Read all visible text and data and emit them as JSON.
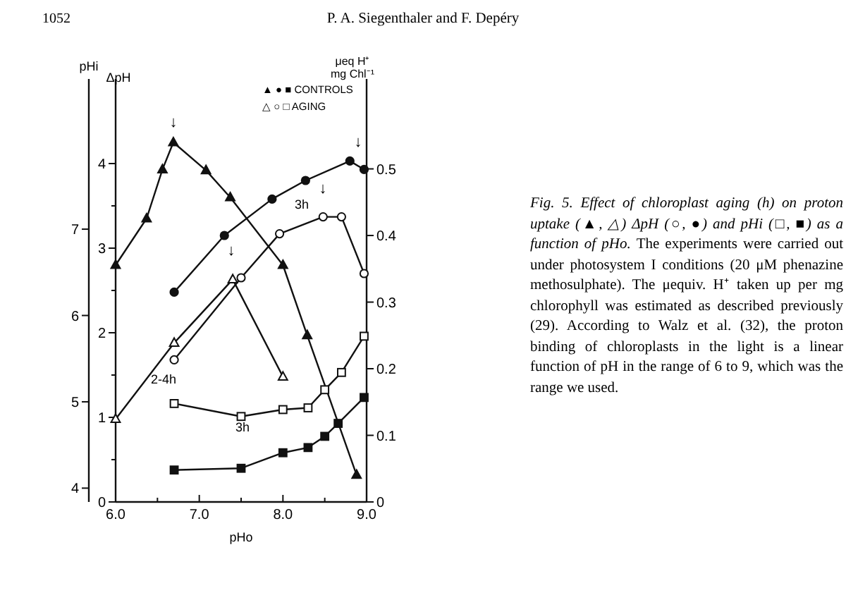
{
  "chart_data": {
    "type": "line",
    "title": "Fig. 5. Effect of chloroplast aging (h) on proton uptake (▲, △) ΔpH (○, ●) and pHi (□, ■) as a function of pHo.",
    "xlabel": "pHo",
    "ylabel": "ΔpH",
    "y3label": "pHi",
    "y2label": "μeq H⁺ mg Chl⁻¹",
    "xlim": [
      6,
      9
    ],
    "xticks": [
      {
        "value": 6,
        "label": "6.0"
      },
      {
        "value": 6.5,
        "label": null
      },
      {
        "value": 7,
        "label": "7.0"
      },
      {
        "value": 7.5,
        "label": null
      },
      {
        "value": 8,
        "label": "8.0"
      },
      {
        "value": 8.5,
        "label": null
      },
      {
        "value": 9,
        "label": "9.0"
      }
    ],
    "ylim": [
      0,
      5
    ],
    "yticks": [
      0,
      {
        "value": 0.5,
        "label": null
      },
      1,
      {
        "value": 1.5,
        "label": null
      },
      2,
      {
        "value": 2.5,
        "label": null
      },
      3,
      {
        "value": 3.5,
        "label": null
      },
      4
    ],
    "y3lim": [
      3.84,
      8.74
    ],
    "y3ticks": [
      4,
      5,
      6,
      7
    ],
    "y2lim": [
      0,
      0.635
    ],
    "y2ticks": [
      0,
      0.1,
      0.2,
      0.3,
      0.4,
      0.5
    ],
    "grid": false,
    "line_style": "solid",
    "series": [
      {
        "color": "#111111",
        "marker": "triangle",
        "x": [
          6.0,
          6.37,
          6.56,
          6.69,
          7.08,
          7.37,
          8.0,
          8.29,
          8.88
        ],
        "values": [
          2.8,
          3.35,
          3.93,
          4.25,
          3.92,
          3.6,
          2.8,
          1.97,
          0.32
        ]
      },
      {
        "color": "#111111",
        "colors": [
          "#ffffff",
          "#ffffff",
          "#ffffff",
          "#ffffff"
        ],
        "marker": "triangle",
        "x": [
          6.0,
          6.7,
          7.4,
          8.0
        ],
        "values": [
          0.98,
          1.88,
          2.63,
          1.48
        ]
      },
      {
        "color": "#111111",
        "marker": "circle",
        "x": [
          6.7,
          7.3,
          7.87,
          8.27,
          8.8,
          8.97
        ],
        "values": [
          2.48,
          3.15,
          3.58,
          3.8,
          4.03,
          3.93
        ]
      },
      {
        "color": "#111111",
        "colors": [
          "#ffffff",
          "#ffffff",
          "#ffffff",
          "#ffffff",
          "#ffffff",
          "#ffffff"
        ],
        "marker": "circle",
        "x": [
          6.7,
          7.5,
          7.96,
          8.48,
          8.7,
          8.97
        ],
        "values": [
          1.68,
          2.65,
          3.17,
          3.37,
          3.37,
          2.7
        ]
      },
      {
        "color": "#111111",
        "marker": "square",
        "axis": "y3",
        "x": [
          6.7,
          7.5,
          8.0,
          8.3,
          8.5,
          8.66,
          8.97
        ],
        "values": [
          4.21,
          4.23,
          4.41,
          4.47,
          4.6,
          4.75,
          5.05
        ]
      },
      {
        "color": "#111111",
        "colors": [
          "#ffffff",
          "#ffffff",
          "#ffffff",
          "#ffffff",
          "#ffffff",
          "#ffffff",
          "#ffffff"
        ],
        "marker": "square",
        "axis": "y3",
        "x": [
          6.7,
          7.5,
          8.0,
          8.3,
          8.5,
          8.7,
          8.97
        ],
        "values": [
          4.98,
          4.83,
          4.91,
          4.93,
          5.14,
          5.34,
          5.76
        ]
      }
    ],
    "annotations": [
      "1052",
      "P. A. Siegenthaler and F. Depéry",
      "▲ ● ■ CONTROLS",
      "△ ○ □ AGING",
      "The experiments were carried out under photosystem I conditions (20 μM phenazine methosulphate). The μequiv. H⁺ taken up per mg chlorophyll was estimated as described previously (29). According to Walz et al. (32), the proton binding of chloroplasts in the light is a linear function of pH in the range of 6 to 9, which was the range we used.",
      "↓",
      "↓",
      "↓",
      "↓",
      "3h",
      "2-4h",
      "3h"
    ]
  }
}
